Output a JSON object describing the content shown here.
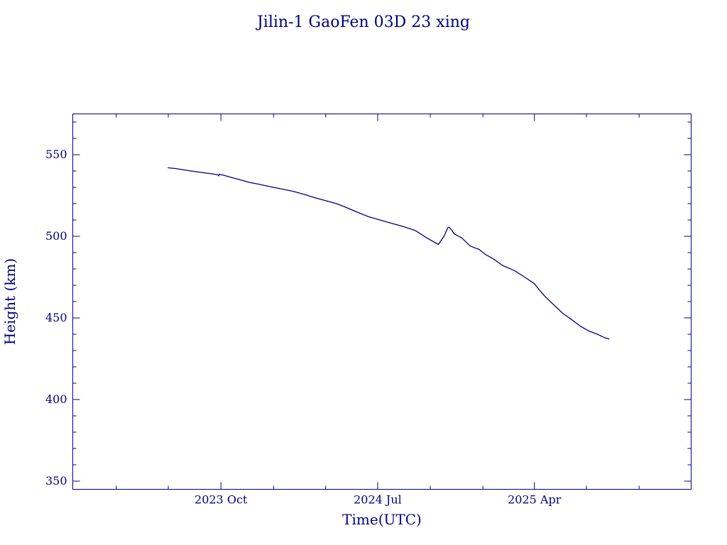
{
  "chart_data": {
    "type": "line",
    "title": "Jilin-1 GaoFen 03D 23 xing",
    "xlabel": "Time(UTC)",
    "ylabel": "Height (km)",
    "xlim": [
      "2023-01-15",
      "2025-12-31"
    ],
    "ylim": [
      345,
      575
    ],
    "x_ticks": [
      {
        "label": "2023 Oct",
        "date": "2023-10-01"
      },
      {
        "label": "2024 Jul",
        "date": "2024-07-01"
      },
      {
        "label": "2025 Apr",
        "date": "2025-04-01"
      }
    ],
    "y_ticks": [
      350,
      400,
      450,
      500,
      550
    ],
    "grid": false,
    "series": [
      {
        "x": [
          "2023-06-30",
          "2023-07-15",
          "2023-08-01",
          "2023-08-20",
          "2023-09-10",
          "2023-09-25",
          "2023-09-27",
          "2023-09-28",
          "2023-10-05",
          "2023-10-20",
          "2023-11-05",
          "2023-11-20",
          "2023-12-05",
          "2023-12-25",
          "2024-01-15",
          "2024-02-05",
          "2024-02-25",
          "2024-03-15",
          "2024-03-25",
          "2024-04-05",
          "2024-04-20",
          "2024-05-05",
          "2024-05-25",
          "2024-06-15",
          "2024-07-05",
          "2024-07-25",
          "2024-08-15",
          "2024-09-05",
          "2024-09-25",
          "2024-10-15",
          "2024-10-25",
          "2024-10-30",
          "2024-11-01",
          "2024-11-03",
          "2024-11-07",
          "2024-11-12",
          "2024-11-25",
          "2024-12-10",
          "2024-12-25",
          "2025-01-05",
          "2025-01-20",
          "2025-02-05",
          "2025-02-25",
          "2025-03-15",
          "2025-04-01",
          "2025-04-10",
          "2025-04-20",
          "2025-05-05",
          "2025-05-20",
          "2025-06-05",
          "2025-06-20",
          "2025-07-05",
          "2025-07-20",
          "2025-08-01",
          "2025-08-10"
        ],
        "y": [
          542,
          541.5,
          540.5,
          539.5,
          538.5,
          537.8,
          537,
          538,
          537.5,
          536,
          534.5,
          533,
          532,
          530.5,
          529,
          527.5,
          525.5,
          523.5,
          522.5,
          521.5,
          520,
          518,
          515,
          512,
          510,
          508,
          506,
          503.5,
          499,
          495,
          500,
          504,
          505.5,
          505.5,
          504,
          501.5,
          499,
          494,
          492,
          489,
          486,
          482,
          479,
          475,
          471,
          467,
          463,
          458,
          453,
          449,
          445,
          442,
          440,
          438,
          437
        ]
      }
    ]
  }
}
